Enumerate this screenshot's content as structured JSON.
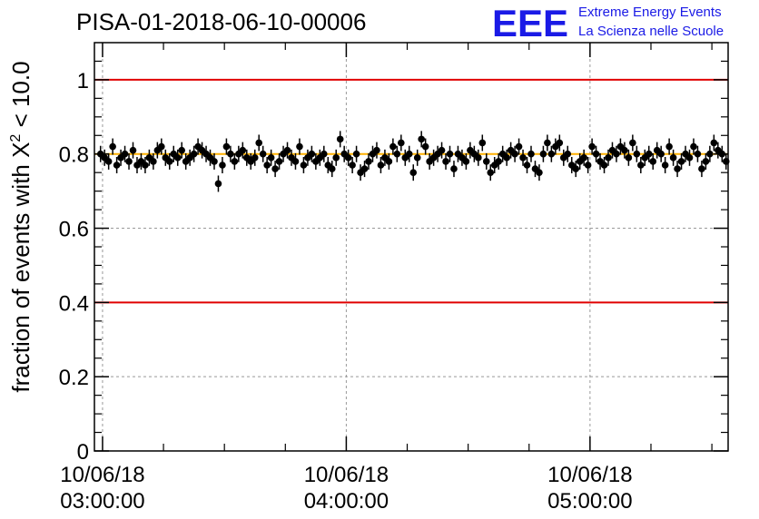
{
  "chart_data": {
    "type": "scatter",
    "title": "PISA-01-2018-06-10-00006",
    "ylabel": "fraction of events with X² < 10.0",
    "ylabel_main": "fraction of events with X",
    "ylabel_sup": "2",
    "ylabel_tail": " < 10.0",
    "xlabel": "",
    "x_domain_minutes": [
      -2,
      154
    ],
    "ylim": [
      0,
      1.1
    ],
    "y_ticks": [
      0,
      0.2,
      0.4,
      0.6,
      0.8,
      1
    ],
    "y_tick_labels": [
      "0",
      "0.2",
      "0.4",
      "0.6",
      "0.8",
      "1"
    ],
    "x_ticks": [
      {
        "minute": 0,
        "date": "10/06/18",
        "time": "03:00:00"
      },
      {
        "minute": 60,
        "date": "10/06/18",
        "time": "04:00:00"
      },
      {
        "minute": 120,
        "date": "10/06/18",
        "time": "05:00:00"
      }
    ],
    "grid": true,
    "reference_lines": [
      {
        "y": 1.0,
        "color": "#e00000"
      },
      {
        "y": 0.4,
        "color": "#e00000"
      },
      {
        "y": 0.8,
        "color": "#ffb000"
      }
    ],
    "series": [
      {
        "x_step_minutes": 1,
        "x_start_minute": -0.5,
        "error": 0.022,
        "values": [
          0.8,
          0.79,
          0.78,
          0.82,
          0.77,
          0.79,
          0.8,
          0.78,
          0.81,
          0.77,
          0.78,
          0.77,
          0.79,
          0.78,
          0.81,
          0.82,
          0.79,
          0.78,
          0.8,
          0.79,
          0.81,
          0.78,
          0.79,
          0.8,
          0.82,
          0.81,
          0.8,
          0.79,
          0.78,
          0.72,
          0.77,
          0.82,
          0.8,
          0.78,
          0.8,
          0.81,
          0.79,
          0.78,
          0.79,
          0.83,
          0.8,
          0.77,
          0.79,
          0.76,
          0.78,
          0.8,
          0.81,
          0.79,
          0.78,
          0.82,
          0.77,
          0.79,
          0.8,
          0.78,
          0.79,
          0.8,
          0.77,
          0.76,
          0.79,
          0.84,
          0.8,
          0.79,
          0.77,
          0.8,
          0.75,
          0.76,
          0.78,
          0.8,
          0.81,
          0.77,
          0.79,
          0.78,
          0.82,
          0.8,
          0.83,
          0.79,
          0.8,
          0.75,
          0.79,
          0.84,
          0.82,
          0.78,
          0.79,
          0.8,
          0.81,
          0.78,
          0.8,
          0.76,
          0.8,
          0.79,
          0.78,
          0.81,
          0.8,
          0.79,
          0.83,
          0.78,
          0.75,
          0.77,
          0.78,
          0.8,
          0.79,
          0.81,
          0.8,
          0.82,
          0.79,
          0.77,
          0.8,
          0.76,
          0.75,
          0.8,
          0.83,
          0.8,
          0.82,
          0.83,
          0.79,
          0.8,
          0.77,
          0.76,
          0.78,
          0.79,
          0.77,
          0.82,
          0.8,
          0.78,
          0.77,
          0.79,
          0.81,
          0.8,
          0.82,
          0.81,
          0.79,
          0.83,
          0.8,
          0.77,
          0.79,
          0.8,
          0.78,
          0.81,
          0.8,
          0.77,
          0.82,
          0.79,
          0.76,
          0.78,
          0.8,
          0.79,
          0.82,
          0.8,
          0.76,
          0.78,
          0.8,
          0.83,
          0.81,
          0.8,
          0.78,
          0.75
        ]
      }
    ]
  },
  "logo": {
    "mark": "EEE",
    "line1": "Extreme Energy Events",
    "line2": "La Scienza nelle Scuole"
  }
}
